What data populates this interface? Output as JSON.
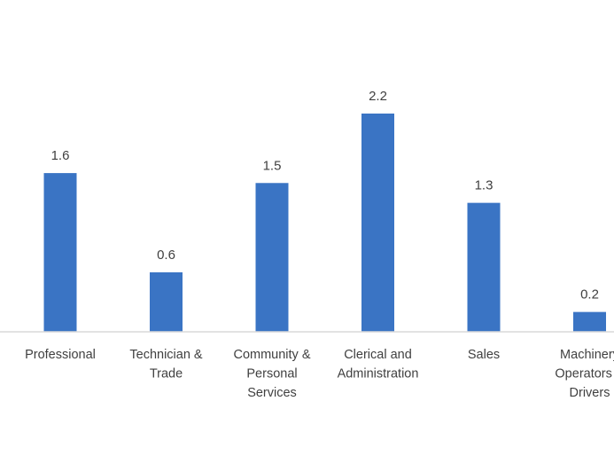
{
  "chart_data": {
    "type": "bar",
    "title": "",
    "xlabel": "",
    "ylabel": "",
    "categories": [
      [
        "Professional"
      ],
      [
        "Technician &",
        "Trade"
      ],
      [
        "Community &",
        "Personal",
        "Services"
      ],
      [
        "Clerical and",
        "Administration"
      ],
      [
        "Sales"
      ],
      [
        "Machinery",
        "Operators &",
        "Drivers"
      ]
    ],
    "values": [
      1.6,
      0.6,
      1.5,
      2.2,
      1.3,
      0.2
    ],
    "data_labels": [
      "1.6",
      "0.6",
      "1.5",
      "2.2",
      "1.3",
      "0.2"
    ],
    "ylim": [
      0,
      2.2
    ],
    "grid": false,
    "legend": "none",
    "bar_color": "#3a74c4",
    "axis_color": "#d9d9d9",
    "text_color": "#404040"
  }
}
